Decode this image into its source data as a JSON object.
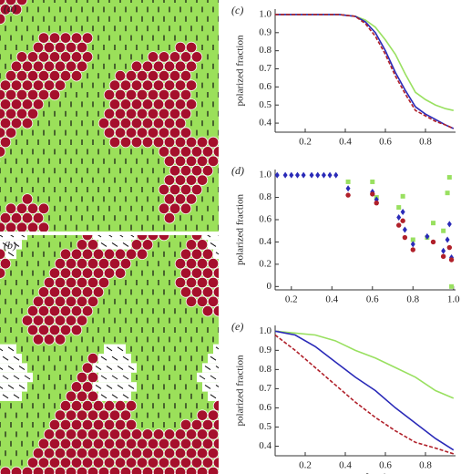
{
  "images": [
    {
      "label": "(a)"
    },
    {
      "label": "(b)"
    }
  ],
  "chart_data": [
    {
      "type": "line",
      "label": "(c)",
      "y_label": "polarized fraction",
      "x": [
        0.05,
        0.2,
        0.37,
        0.45,
        0.5,
        0.55,
        0.6,
        0.65,
        0.7,
        0.75,
        0.8,
        0.85,
        0.9,
        0.94
      ],
      "series": [
        {
          "name": "",
          "color": "#99e060",
          "values": [
            1,
            1,
            1,
            0.99,
            0.97,
            0.93,
            0.86,
            0.78,
            0.67,
            0.57,
            0.53,
            0.5,
            0.48,
            0.47
          ]
        },
        {
          "name": "",
          "color": "#2a2ab8",
          "values": [
            1,
            1,
            1,
            0.99,
            0.96,
            0.9,
            0.8,
            0.68,
            0.58,
            0.49,
            0.45,
            0.42,
            0.39,
            0.37
          ]
        },
        {
          "name": "",
          "color": "#b0202a",
          "dashed": true,
          "values": [
            1,
            1,
            1,
            0.99,
            0.95,
            0.88,
            0.78,
            0.66,
            0.56,
            0.47,
            0.44,
            0.41,
            0.39,
            0.37
          ]
        }
      ],
      "xlim": [
        0.05,
        0.95
      ],
      "xticks": [
        0.2,
        0.4,
        0.6,
        0.8
      ],
      "ylim": [
        0.35,
        1.03
      ],
      "yticks": [
        0.4,
        0.5,
        0.6,
        0.7,
        0.8,
        0.9,
        {
          "value": 1,
          "label": "1.0"
        }
      ]
    },
    {
      "type": "scatter",
      "label": "(d)",
      "y_label": "polarized fraction",
      "series": [
        {
          "name": "",
          "color": "#99e060",
          "marker": "square",
          "x": [
            0.48,
            0.6,
            0.62,
            0.73,
            0.75,
            0.8,
            0.87,
            0.9,
            0.95,
            0.97,
            0.98,
            0.99
          ],
          "values": [
            0.94,
            0.94,
            0.8,
            0.71,
            0.81,
            0.42,
            0.44,
            0.57,
            0.5,
            0.84,
            0.98,
            0.0
          ]
        },
        {
          "name": "",
          "color": "#2a2ab8",
          "marker": "diamond",
          "x": [
            0.13,
            0.17,
            0.2,
            0.23,
            0.26,
            0.3,
            0.33,
            0.36,
            0.39,
            0.42,
            0.48,
            0.6,
            0.62,
            0.73,
            0.75,
            0.76,
            0.8,
            0.87,
            0.95,
            0.97,
            0.98,
            0.99
          ],
          "values": [
            1,
            1,
            1,
            1,
            1,
            1,
            1,
            1,
            1,
            1,
            0.88,
            0.85,
            0.78,
            0.62,
            0.67,
            0.51,
            0.38,
            0.45,
            0.32,
            0.42,
            0.56,
            0.26
          ]
        },
        {
          "name": "",
          "color": "#b0202a",
          "marker": "circle",
          "x": [
            0.48,
            0.6,
            0.62,
            0.73,
            0.75,
            0.76,
            0.8,
            0.9,
            0.95,
            0.98,
            0.99
          ],
          "values": [
            0.82,
            0.83,
            0.75,
            0.55,
            0.59,
            0.44,
            0.33,
            0.4,
            0.27,
            0.35,
            0.24
          ]
        }
      ],
      "xlim": [
        0.12,
        1.01
      ],
      "xticks": [
        0.2,
        0.4,
        0.6,
        0.8,
        {
          "value": 1,
          "label": "1.0"
        }
      ],
      "ylim": [
        -0.03,
        1.05
      ],
      "yticks": [
        0,
        0.2,
        0.4,
        0.6,
        0.8,
        {
          "value": 1,
          "label": "1.0"
        }
      ]
    },
    {
      "type": "line",
      "label": "(e)",
      "y_label": "polarized fraction",
      "x_label": "mutant fraction",
      "x": [
        0.05,
        0.15,
        0.25,
        0.35,
        0.45,
        0.55,
        0.65,
        0.75,
        0.85,
        0.94
      ],
      "series": [
        {
          "name": "",
          "color": "#99e060",
          "values": [
            1,
            0.99,
            0.98,
            0.95,
            0.9,
            0.86,
            0.81,
            0.76,
            0.69,
            0.65
          ]
        },
        {
          "name": "",
          "color": "#2a2ab8",
          "values": [
            1,
            0.98,
            0.92,
            0.84,
            0.76,
            0.69,
            0.6,
            0.52,
            0.44,
            0.38
          ]
        },
        {
          "name": "",
          "color": "#b0202a",
          "dashed": true,
          "values": [
            0.98,
            0.9,
            0.81,
            0.72,
            0.63,
            0.55,
            0.48,
            0.42,
            0.39,
            0.36
          ]
        }
      ],
      "xlim": [
        0.05,
        0.95
      ],
      "xticks": [
        0.2,
        0.4,
        0.6,
        0.8
      ],
      "ylim": [
        0.35,
        1.03
      ],
      "yticks": [
        0.4,
        0.5,
        0.6,
        0.7,
        0.8,
        0.9,
        {
          "value": 1,
          "label": "1.0"
        }
      ]
    }
  ]
}
